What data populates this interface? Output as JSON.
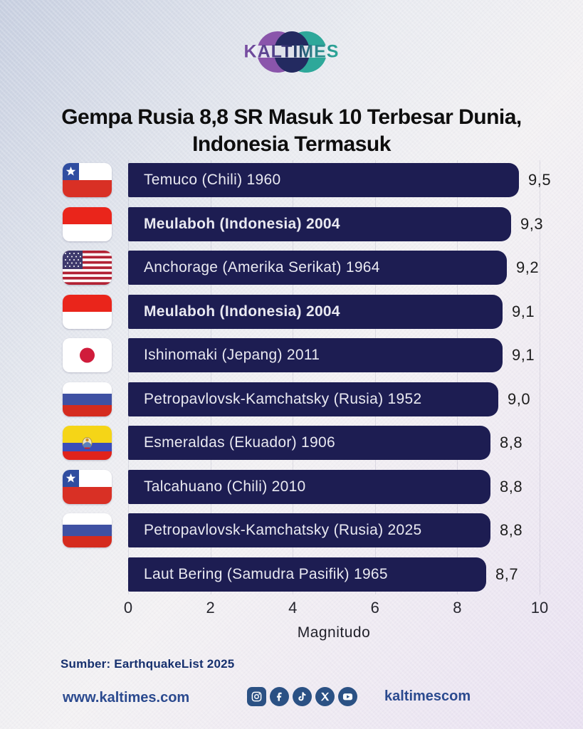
{
  "brand": {
    "logo_text": "KALTIMES"
  },
  "title_lines": {
    "0": "Gempa Rusia 8,8 SR Masuk 10 Terbesar Dunia,",
    "1": "Indonesia Termasuk"
  },
  "chart_data": {
    "type": "bar",
    "orientation": "horizontal",
    "title": "Gempa Rusia 8,8 SR Masuk 10 Terbesar Dunia, Indonesia Termasuk",
    "xlabel": "Magnitudo",
    "xlim": [
      0,
      10
    ],
    "x_ticks": [
      0,
      2,
      4,
      6,
      8,
      10
    ],
    "grid": true,
    "bar_color": "#1d1d52",
    "bar_text_color": "#e9e9f1",
    "rows": [
      {
        "label": "Temuco (Chili) 1960",
        "value": 9.5,
        "value_label": "9,5",
        "flag": "chile",
        "bold": false
      },
      {
        "label": "Meulaboh (Indonesia) 2004",
        "value": 9.3,
        "value_label": "9,3",
        "flag": "indonesia",
        "bold": true
      },
      {
        "label": "Anchorage (Amerika Serikat) 1964",
        "value": 9.2,
        "value_label": "9,2",
        "flag": "usa",
        "bold": false
      },
      {
        "label": "Meulaboh (Indonesia) 2004",
        "value": 9.1,
        "value_label": "9,1",
        "flag": "indonesia",
        "bold": true
      },
      {
        "label": "Ishinomaki (Jepang) 2011",
        "value": 9.1,
        "value_label": "9,1",
        "flag": "japan",
        "bold": false
      },
      {
        "label": "Petropavlovsk-Kamchatsky (Rusia) 1952",
        "value": 9.0,
        "value_label": "9,0",
        "flag": "russia",
        "bold": false
      },
      {
        "label": "Esmeraldas (Ekuador) 1906",
        "value": 8.8,
        "value_label": "8,8",
        "flag": "ecuador",
        "bold": false
      },
      {
        "label": "Talcahuano (Chili) 2010",
        "value": 8.8,
        "value_label": "8,8",
        "flag": "chile",
        "bold": false
      },
      {
        "label": "Petropavlovsk-Kamchatsky (Rusia) 2025",
        "value": 8.8,
        "value_label": "8,8",
        "flag": "russia",
        "bold": false
      },
      {
        "label": "Laut Bering (Samudra Pasifik) 1965",
        "value": 8.7,
        "value_label": "8,7",
        "flag": null,
        "bold": false
      }
    ]
  },
  "source": "Sumber: EarthquakeList 2025",
  "footer": {
    "website": "www.kaltimes.com",
    "social_handle": "kaltimescom",
    "social_icons": [
      "instagram",
      "facebook",
      "tiktok",
      "x",
      "youtube"
    ]
  },
  "colors": {
    "bar": "#1d1d52",
    "title_text": "#0e0e0e",
    "source_text": "#16306e",
    "footer_text": "#2b4a8f",
    "social_bg": "#2b5184",
    "logo_purple": "#8a55ab",
    "logo_teal": "#2ea89a",
    "logo_navy": "#232a60"
  }
}
